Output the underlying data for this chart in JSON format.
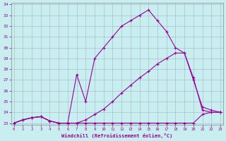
{
  "xlabel": "Windchill (Refroidissement éolien,°C)",
  "ylabel": "",
  "xlim": [
    0,
    23
  ],
  "ylim": [
    23,
    34
  ],
  "xticks": [
    0,
    1,
    2,
    3,
    4,
    5,
    6,
    7,
    8,
    9,
    10,
    11,
    12,
    13,
    14,
    15,
    16,
    17,
    18,
    19,
    20,
    21,
    22,
    23
  ],
  "yticks": [
    23,
    24,
    25,
    26,
    27,
    28,
    29,
    30,
    31,
    32,
    33,
    34
  ],
  "bg_color": "#c8eef0",
  "line_color": "#990099",
  "grid_color": "#9999bb",
  "lines": [
    [
      23.0,
      23.3,
      23.5,
      23.6,
      23.2,
      23.0,
      23.0,
      23.0,
      23.0,
      23.0,
      23.0,
      23.0,
      23.0,
      23.0,
      23.0,
      23.0,
      23.0,
      23.0,
      23.0,
      23.0,
      23.0,
      23.8,
      24.0,
      24.0
    ],
    [
      23.0,
      23.3,
      23.5,
      23.6,
      23.2,
      23.0,
      23.0,
      23.0,
      23.3,
      23.8,
      24.3,
      25.0,
      25.8,
      26.5,
      27.2,
      27.8,
      28.5,
      29.0,
      29.5,
      29.5,
      27.2,
      24.2,
      24.0,
      24.0
    ],
    [
      23.0,
      23.3,
      23.5,
      23.6,
      23.2,
      23.0,
      23.0,
      27.5,
      25.0,
      29.0,
      30.0,
      31.0,
      32.0,
      32.5,
      33.0,
      33.5,
      32.5,
      31.5,
      30.0,
      29.5,
      27.0,
      24.5,
      24.2,
      24.0
    ]
  ]
}
